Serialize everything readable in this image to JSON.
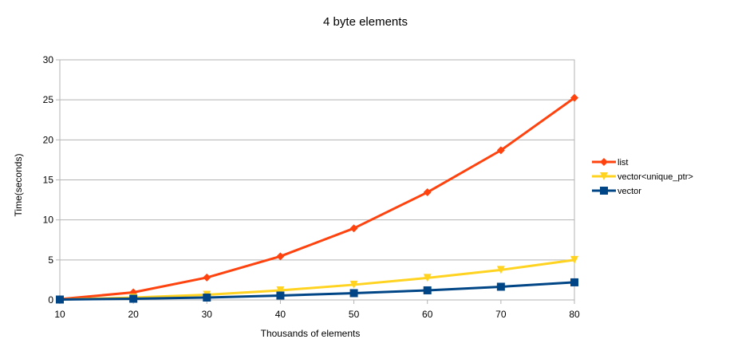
{
  "chart_data": {
    "type": "line",
    "title": "4 byte elements",
    "xlabel": "Thousands of elements",
    "ylabel": "Time(seconds)",
    "x": [
      10,
      20,
      30,
      40,
      50,
      60,
      70,
      80
    ],
    "xlim": [
      10,
      80
    ],
    "ylim": [
      0,
      30
    ],
    "yticks": [
      0,
      5,
      10,
      15,
      20,
      25,
      30
    ],
    "grid": true,
    "legend": "right",
    "series": [
      {
        "name": "list",
        "marker": "diamond",
        "color": "#ff420e",
        "values": [
          0.1,
          0.95,
          2.8,
          5.45,
          8.95,
          13.45,
          18.7,
          25.25
        ]
      },
      {
        "name": "vector<unique_ptr>",
        "marker": "triangle-down",
        "color": "#ffd320",
        "values": [
          0.05,
          0.3,
          0.65,
          1.2,
          1.9,
          2.75,
          3.75,
          5.0
        ]
      },
      {
        "name": "vector",
        "marker": "square",
        "color": "#004586",
        "values": [
          0.05,
          0.15,
          0.3,
          0.55,
          0.85,
          1.2,
          1.65,
          2.2
        ]
      }
    ]
  }
}
